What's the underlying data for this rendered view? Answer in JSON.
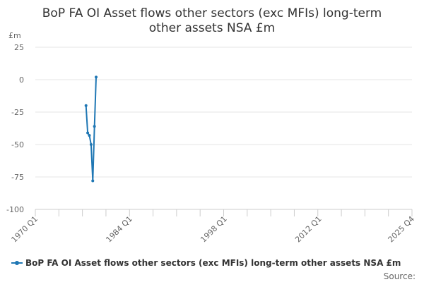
{
  "chart_data": {
    "type": "line",
    "title_lines": [
      "BoP FA OI Asset flows other sectors (exc MFIs) long-term",
      "other assets NSA £m"
    ],
    "ylabel": "£m",
    "xlabel": "",
    "x_tick_labels": [
      "1970 Q1",
      "1984 Q1",
      "1998 Q1",
      "2012 Q1",
      "2025 Q4"
    ],
    "y_ticks": [
      25,
      0,
      -25,
      -50,
      -75,
      -100
    ],
    "ylim": [
      -100,
      25
    ],
    "xlim": [
      "1970 Q1",
      "2025 Q4"
    ],
    "grid": "horizontal",
    "legend_position": "bottom",
    "series": [
      {
        "name": "BoP FA OI Asset flows other sectors (exc MFIs) long-term other assets NSA £m",
        "color": "#1f77b4",
        "points": [
          {
            "x": "1977 Q3",
            "y": -20
          },
          {
            "x": "1977 Q4",
            "y": -41
          },
          {
            "x": "1978 Q1",
            "y": -43
          },
          {
            "x": "1978 Q2",
            "y": -50
          },
          {
            "x": "1978 Q3",
            "y": -78
          },
          {
            "x": "1978 Q4",
            "y": -36
          },
          {
            "x": "1979 Q1",
            "y": 2
          }
        ]
      }
    ],
    "source_label": "Source:"
  }
}
